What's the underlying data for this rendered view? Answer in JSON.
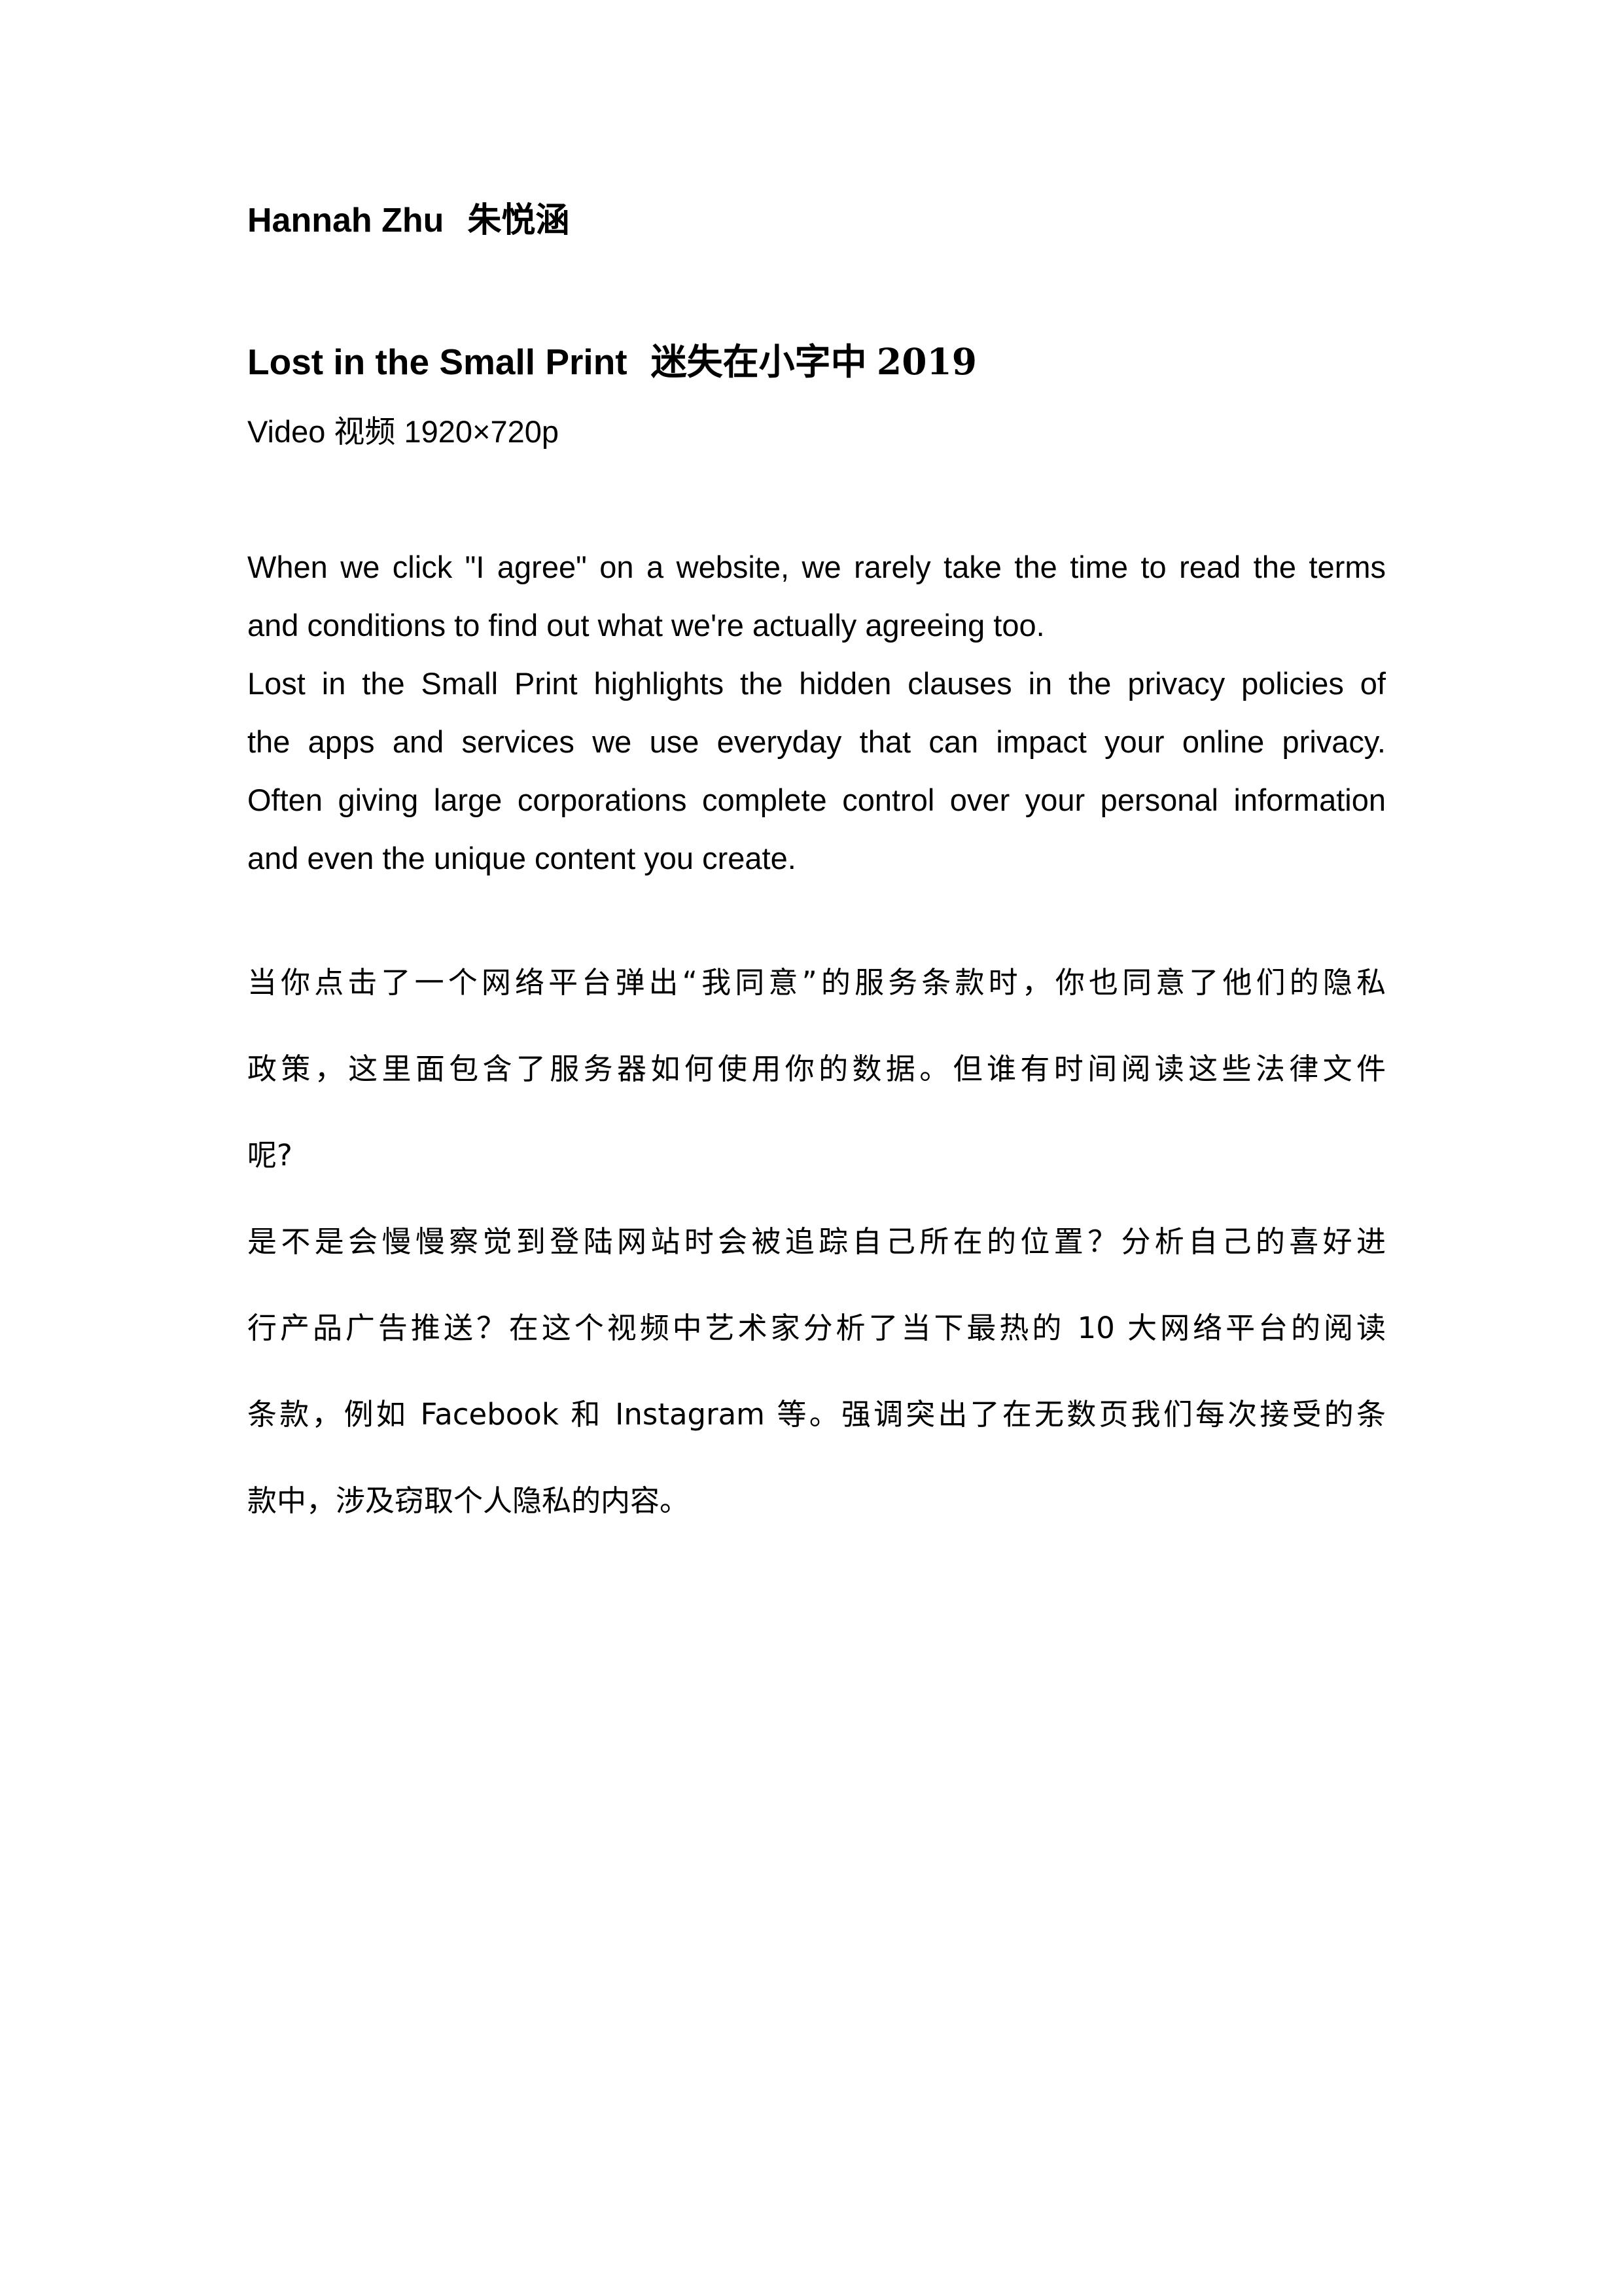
{
  "artist": {
    "name_en": "Hannah Zhu",
    "name_cn": "朱悦涵"
  },
  "work": {
    "title_en": "Lost in the Small Print",
    "title_cn": "迷失在小字中",
    "year": "2019",
    "medium_en": "Video",
    "medium_cn": "视频",
    "resolution": "1920×720p"
  },
  "description_en": {
    "lines": [
      "When we click \"I agree\" on a website, we rarely take the time to read the terms",
      "and conditions to find out what we're actually agreeing too.",
      "Lost in the Small Print highlights the hidden clauses in the privacy policies of",
      "the apps and services we use everyday that can impact your online privacy.",
      "Often giving large corporations complete control over your personal information",
      "and even the unique content you create."
    ]
  },
  "description_cn": {
    "para1": [
      "当你点击了一个网络平台弹出“我同意”的服务条款时，你也同意了他们的隐私",
      "政策，这里面包含了服务器如何使用你的数据。但谁有时间阅读这些法律文件",
      "呢?"
    ],
    "para2": [
      "是不是会慢慢察觉到登陆网站时会被追踪自己所在的位置？分析自己的喜好进",
      "行产品广告推送？在这个视频中艺术家分析了当下最热的 10 大网络平台的阅读",
      "条款，例如 Facebook 和 Instagram 等。强调突出了在无数页我们每次接受的条",
      "款中，涉及窃取个人隐私的内容。"
    ]
  }
}
